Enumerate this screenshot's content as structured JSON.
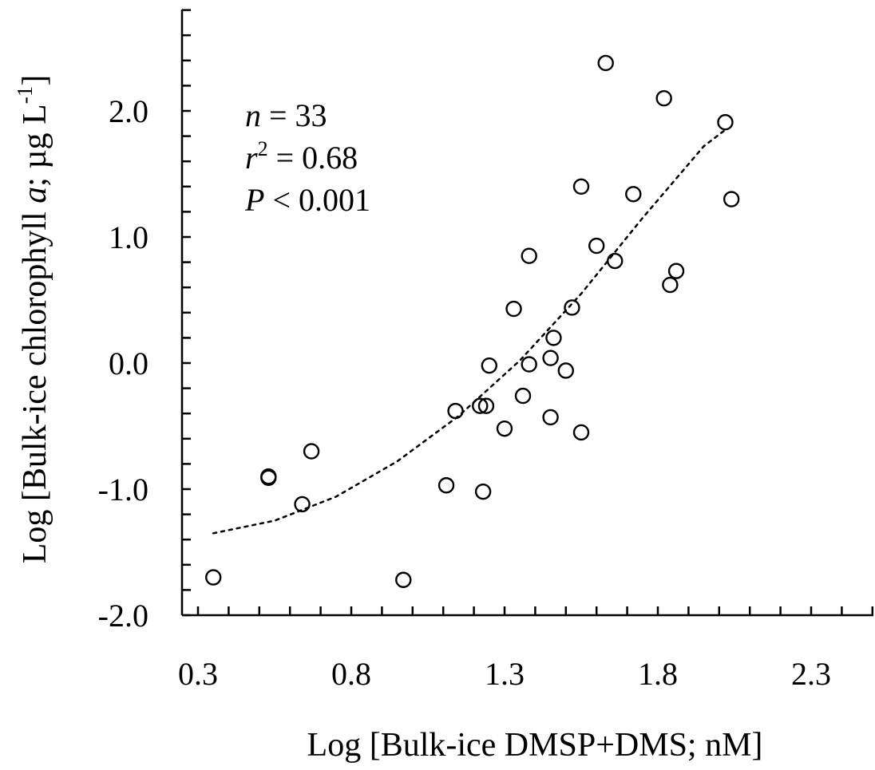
{
  "chart_data": {
    "type": "scatter",
    "title": "",
    "xlabel": "Log [Bulk-ice DMSP+DMS; nM]",
    "ylabel": {
      "prefix": "Log [Bulk-ice chlorophyll ",
      "italic": "a",
      "middle": "; µg L",
      "superscript": "-1",
      "suffix": "]"
    },
    "xlim": [
      0.3,
      2.5
    ],
    "ylim": [
      -2.0,
      2.8
    ],
    "x_ticks": [
      0.3,
      0.8,
      1.3,
      1.8,
      2.3
    ],
    "x_tick_labels": [
      "0.3",
      "0.8",
      "1.3",
      "1.8",
      "2.3"
    ],
    "y_ticks": [
      -2.0,
      -1.0,
      0.0,
      1.0,
      2.0
    ],
    "y_tick_labels": [
      "-2.0",
      "-1.0",
      "0.0",
      "1.0",
      "2.0"
    ],
    "grid": false,
    "stats": {
      "n": {
        "symbol": "n",
        "text": " = 33"
      },
      "r2": {
        "symbol": "r",
        "sup": "2",
        "text": " = 0.68"
      },
      "p": {
        "symbol": "P",
        "text": " < 0.001"
      }
    },
    "points": [
      {
        "x": 0.35,
        "y": -1.7
      },
      {
        "x": 0.53,
        "y": -0.9
      },
      {
        "x": 0.53,
        "y": -0.91
      },
      {
        "x": 0.64,
        "y": -1.12
      },
      {
        "x": 0.67,
        "y": -0.7
      },
      {
        "x": 0.97,
        "y": -1.72
      },
      {
        "x": 1.11,
        "y": -0.97
      },
      {
        "x": 1.14,
        "y": -0.38
      },
      {
        "x": 1.22,
        "y": -0.34
      },
      {
        "x": 1.23,
        "y": -1.02
      },
      {
        "x": 1.24,
        "y": -0.34
      },
      {
        "x": 1.25,
        "y": -0.02
      },
      {
        "x": 1.3,
        "y": -0.52
      },
      {
        "x": 1.33,
        "y": 0.43
      },
      {
        "x": 1.36,
        "y": -0.26
      },
      {
        "x": 1.38,
        "y": 0.85
      },
      {
        "x": 1.38,
        "y": -0.01
      },
      {
        "x": 1.45,
        "y": 0.04
      },
      {
        "x": 1.45,
        "y": -0.43
      },
      {
        "x": 1.46,
        "y": 0.2
      },
      {
        "x": 1.5,
        "y": -0.06
      },
      {
        "x": 1.52,
        "y": 0.44
      },
      {
        "x": 1.55,
        "y": 1.4
      },
      {
        "x": 1.55,
        "y": -0.55
      },
      {
        "x": 1.6,
        "y": 0.93
      },
      {
        "x": 1.63,
        "y": 2.38
      },
      {
        "x": 1.66,
        "y": 0.81
      },
      {
        "x": 1.72,
        "y": 1.34
      },
      {
        "x": 1.82,
        "y": 2.1
      },
      {
        "x": 1.84,
        "y": 0.62
      },
      {
        "x": 1.86,
        "y": 0.73
      },
      {
        "x": 2.02,
        "y": 1.91
      },
      {
        "x": 2.04,
        "y": 1.3
      }
    ],
    "trend_line": {
      "style": "dotted",
      "x": [
        0.35,
        0.55,
        0.75,
        0.95,
        1.15,
        1.35,
        1.55,
        1.75,
        1.95,
        2.02
      ],
      "y": [
        -1.35,
        -1.25,
        -1.06,
        -0.78,
        -0.42,
        0.02,
        0.55,
        1.15,
        1.72,
        1.85
      ]
    }
  }
}
